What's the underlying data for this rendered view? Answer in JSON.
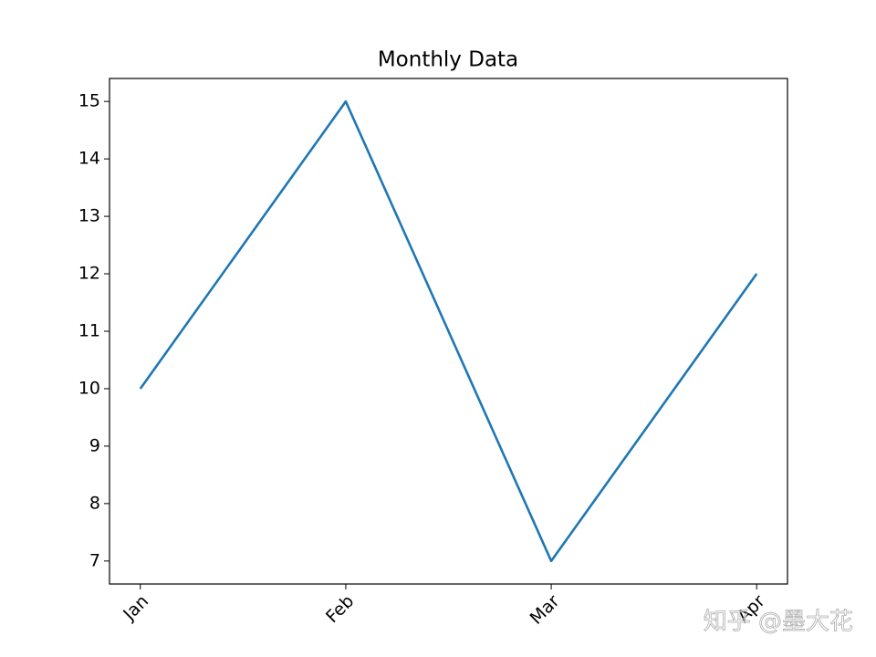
{
  "chart_data": {
    "type": "line",
    "title": "Monthly Data",
    "categories": [
      "Jan",
      "Feb",
      "Mar",
      "Apr"
    ],
    "series": [
      {
        "color": "#1f77b4",
        "values": [
          10,
          15,
          7,
          12
        ]
      }
    ],
    "ylim": [
      6.6,
      15.4
    ],
    "yticks": [
      7,
      8,
      9,
      10,
      11,
      12,
      13,
      14,
      15
    ],
    "grid": false
  },
  "watermark": "知乎 @墨大花"
}
